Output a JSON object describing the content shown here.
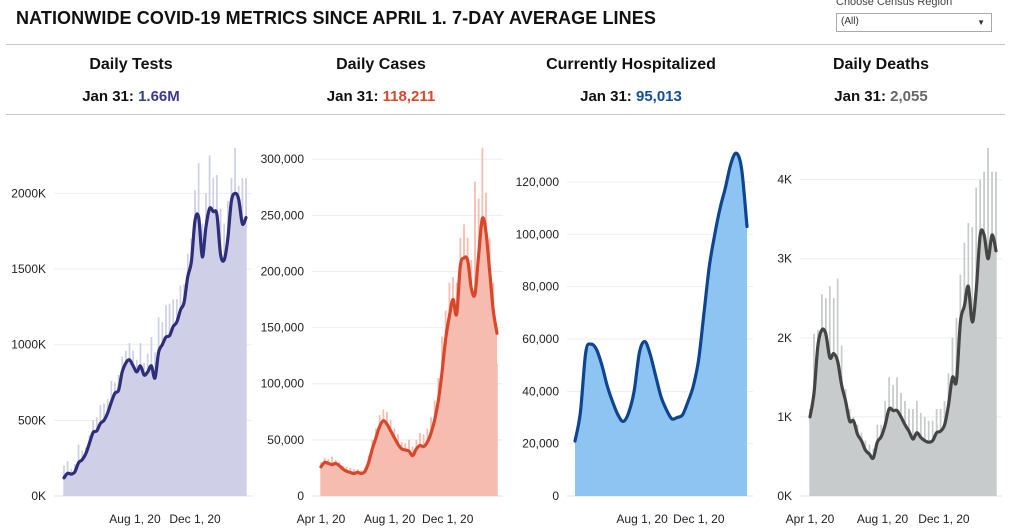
{
  "header": {
    "title": "NATIONWIDE COVID-19 METRICS SINCE APRIL 1. 7-DAY AVERAGE LINES",
    "region_label": "Choose Census Region",
    "region_value": "(All)"
  },
  "panels": [
    {
      "title": "Daily Tests",
      "date_label": "Jan 31: ",
      "value": "1.66M",
      "color": "#3b3b8c"
    },
    {
      "title": "Daily Cases",
      "date_label": "Jan 31: ",
      "value": "118,211",
      "color": "#d9472b"
    },
    {
      "title": "Currently Hospitalized",
      "date_label": "Jan 31: ",
      "value": "95,013",
      "color": "#124f94"
    },
    {
      "title": "Daily Deaths",
      "date_label": "Jan 31: ",
      "value": "2,055",
      "color": "#666666"
    }
  ],
  "chart_data": [
    {
      "type": "area",
      "title": "Daily Tests",
      "line_color": "#2e2e7a",
      "fill_color": "#cfd0e8",
      "ylim": [
        0,
        2300000
      ],
      "yticks": [
        0,
        500000,
        1000000,
        1500000,
        2000000
      ],
      "ytick_labels": [
        "0K",
        "500K",
        "1000K",
        "1500K",
        "2000K"
      ],
      "xticks": [
        {
          "t": 0.39,
          "label": "Aug 1, 20"
        },
        {
          "t": 0.72,
          "label": "Dec 1, 20"
        }
      ],
      "x_range": [
        "Apr 1, 20",
        "Jan 31, 21"
      ],
      "avg_values": [
        120000,
        150000,
        145000,
        160000,
        220000,
        240000,
        280000,
        350000,
        420000,
        430000,
        480000,
        500000,
        550000,
        620000,
        680000,
        700000,
        820000,
        880000,
        900000,
        860000,
        820000,
        860000,
        800000,
        820000,
        860000,
        780000,
        950000,
        1000000,
        1050000,
        1060000,
        1120000,
        1150000,
        1230000,
        1280000,
        1450000,
        1550000,
        1820000,
        1840000,
        1580000,
        1780000,
        1900000,
        1880000,
        1860000,
        1600000,
        1560000,
        1700000,
        1950000,
        2000000,
        1960000,
        1800000,
        1840000
      ],
      "raw_peak_values": [
        200000,
        230000,
        180000,
        210000,
        340000,
        300000,
        320000,
        400000,
        500000,
        520000,
        600000,
        610000,
        640000,
        760000,
        750000,
        800000,
        920000,
        960000,
        1010000,
        960000,
        900000,
        1010000,
        880000,
        940000,
        1050000,
        950000,
        1180000,
        1150000,
        1260000,
        1270000,
        1300000,
        1300000,
        1390000,
        1400000,
        1600000,
        1700000,
        2020000,
        2200000,
        1800000,
        2000000,
        2250000,
        2100000,
        2120000,
        1900000,
        1800000,
        1950000,
        2100000,
        2300000,
        2050000,
        2100000,
        2100000
      ]
    },
    {
      "type": "area",
      "title": "Daily Cases",
      "line_color": "#d9472b",
      "fill_color": "#f7bcb0",
      "ylim": [
        0,
        310000
      ],
      "yticks": [
        0,
        50000,
        100000,
        150000,
        200000,
        250000,
        300000
      ],
      "ytick_labels": [
        "0",
        "50,000",
        "100,000",
        "150,000",
        "200,000",
        "250,000",
        "300,000"
      ],
      "xticks": [
        {
          "t": 0.0,
          "label": "Apr 1, 20"
        },
        {
          "t": 0.39,
          "label": "Aug 1, 20"
        },
        {
          "t": 0.72,
          "label": "Dec 1, 20"
        }
      ],
      "x_range": [
        "Apr 1, 20",
        "Jan 31, 21"
      ],
      "avg_values": [
        26000,
        30000,
        29000,
        28000,
        29000,
        27000,
        24000,
        22000,
        21000,
        20000,
        21000,
        20000,
        22000,
        30000,
        42000,
        52000,
        62000,
        67000,
        64000,
        58000,
        52000,
        46000,
        42000,
        41000,
        40000,
        36000,
        42000,
        45000,
        44000,
        48000,
        56000,
        68000,
        85000,
        110000,
        140000,
        160000,
        175000,
        162000,
        205000,
        212000,
        210000,
        185000,
        180000,
        215000,
        247000,
        235000,
        200000,
        165000,
        145000
      ],
      "raw_peak_values": [
        30000,
        34000,
        33000,
        35000,
        32000,
        30000,
        27000,
        26000,
        25000,
        24000,
        24000,
        23000,
        25000,
        36000,
        50000,
        60000,
        72000,
        77000,
        75000,
        68000,
        60000,
        55000,
        48000,
        47000,
        50000,
        44000,
        50000,
        56000,
        55000,
        60000,
        70000,
        85000,
        105000,
        142000,
        165000,
        190000,
        195000,
        190000,
        230000,
        242000,
        230000,
        210000,
        280000,
        265000,
        310000,
        270000,
        230000,
        190000,
        118000
      ]
    },
    {
      "type": "area",
      "title": "Currently Hospitalized",
      "line_color": "#0d4591",
      "fill_color": "#8ec4f1",
      "ylim": [
        0,
        133000
      ],
      "yticks": [
        0,
        20000,
        40000,
        60000,
        80000,
        100000,
        120000
      ],
      "ytick_labels": [
        "0",
        "20,000",
        "40,000",
        "60,000",
        "80,000",
        "100,000",
        "120,000"
      ],
      "xticks": [
        {
          "t": 0.39,
          "label": "Aug 1, 20"
        },
        {
          "t": 0.72,
          "label": "Dec 1, 20"
        }
      ],
      "x_range": [
        "Apr 1, 20",
        "Jan 31, 21"
      ],
      "avg_values": [
        21000,
        32000,
        55000,
        58000,
        56000,
        50000,
        42000,
        36000,
        31000,
        28500,
        32000,
        40000,
        55000,
        59000,
        54000,
        46000,
        38000,
        33000,
        29500,
        30000,
        31000,
        36000,
        42000,
        52000,
        70000,
        88000,
        100000,
        110000,
        118000,
        127000,
        131000,
        125000,
        103000
      ]
    },
    {
      "type": "area",
      "title": "Daily Deaths",
      "line_color": "#444444",
      "fill_color": "#c8cbcb",
      "ylim": [
        0,
        4400
      ],
      "yticks": [
        0,
        1000,
        2000,
        3000,
        4000
      ],
      "ytick_labels": [
        "0K",
        "1K",
        "2K",
        "3K",
        "4K"
      ],
      "xticks": [
        {
          "t": 0.0,
          "label": "Apr 1, 20"
        },
        {
          "t": 0.39,
          "label": "Aug 1, 20"
        },
        {
          "t": 0.72,
          "label": "Dec 1, 20"
        }
      ],
      "x_range": [
        "Apr 1, 20",
        "Jan 31, 21"
      ],
      "avg_values": [
        1000,
        1300,
        1900,
        2100,
        2050,
        1750,
        1800,
        1700,
        1400,
        1200,
        950,
        950,
        780,
        700,
        580,
        530,
        480,
        680,
        750,
        900,
        1100,
        1080,
        1080,
        1000,
        900,
        820,
        720,
        800,
        740,
        700,
        680,
        700,
        800,
        820,
        900,
        1150,
        1500,
        1450,
        2200,
        2400,
        2650,
        2200,
        2600,
        3300,
        3300,
        3000,
        3300,
        3100
      ],
      "raw_peak_values": [
        1100,
        2050,
        2100,
        2550,
        2500,
        2650,
        2500,
        2750,
        1900,
        1350,
        1100,
        1000,
        900,
        800,
        700,
        650,
        600,
        900,
        900,
        1200,
        1500,
        1400,
        1500,
        1300,
        1200,
        1100,
        1100,
        1200,
        1050,
        1000,
        950,
        950,
        1100,
        1100,
        1200,
        1550,
        2000,
        2250,
        2800,
        3200,
        3450,
        3400,
        3900,
        4000,
        4100,
        4400,
        4100,
        4100
      ]
    }
  ]
}
